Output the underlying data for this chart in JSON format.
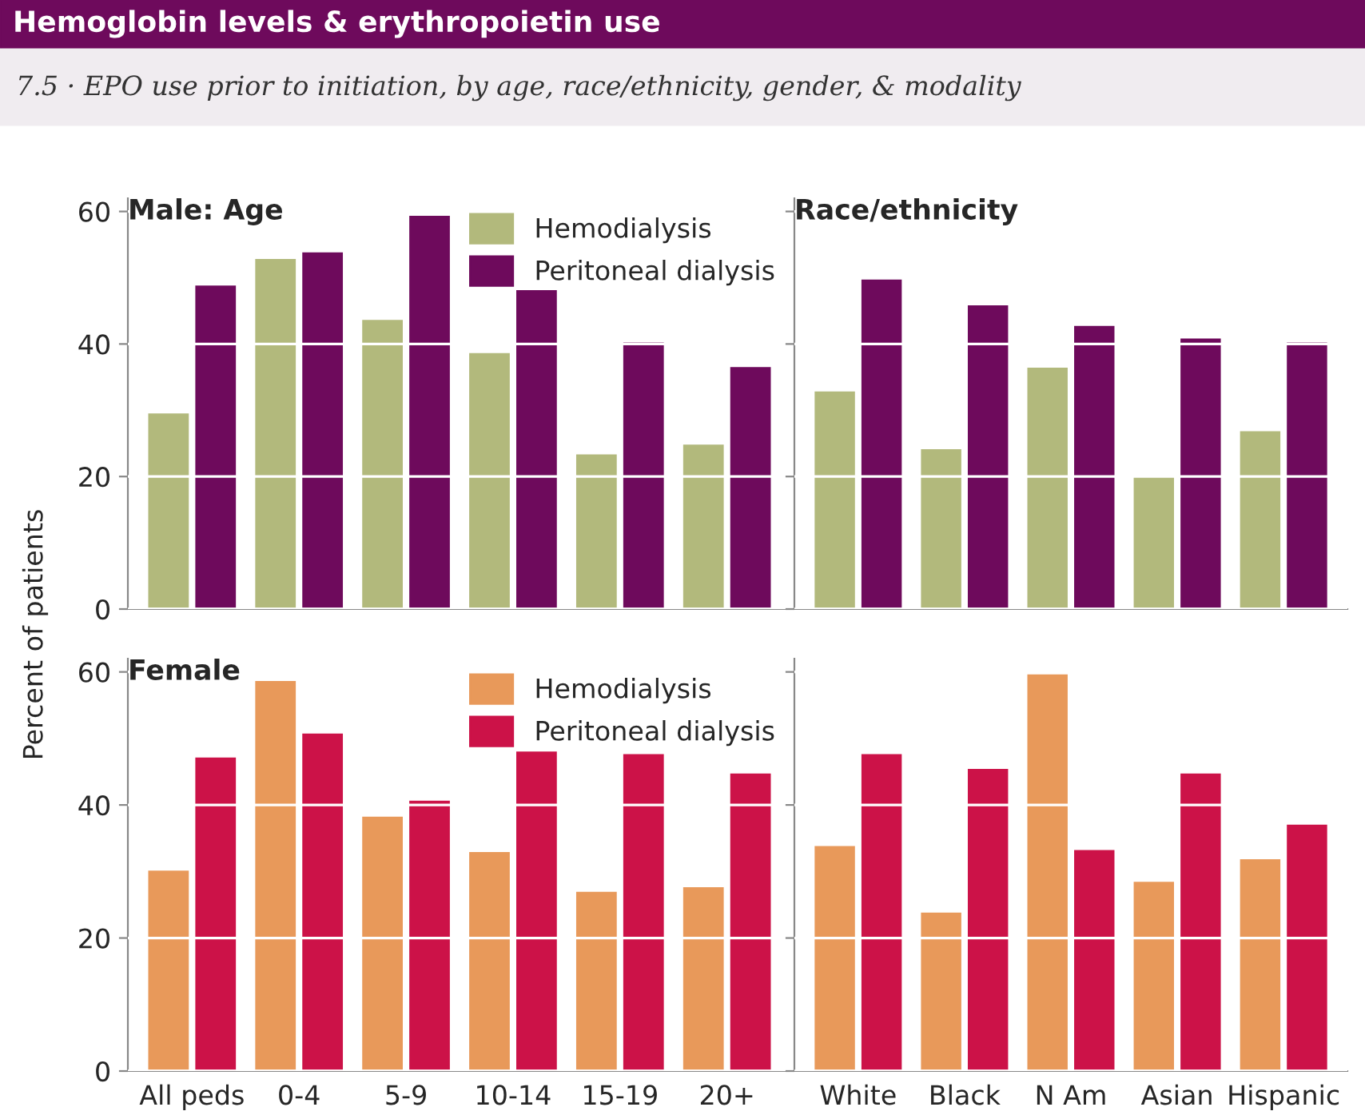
{
  "chart_data": [
    {
      "type": "other",
      "title": "Hemoglobin levels & erythropoietin use",
      "subtitle": "7.5 · EPO use prior to initiation, by age, race/ethnicity, gender, & modality"
    },
    {
      "type": "bar",
      "title": "Male: Age",
      "ylabel": "Percent of patients",
      "categories": [
        null,
        null,
        null,
        null,
        null,
        null
      ],
      "ylim": [
        0,
        62
      ],
      "yticks": [
        0,
        20,
        40,
        60
      ],
      "grid": "y",
      "legend": "top right",
      "tick_labels": "y",
      "series": [
        {
          "name": "Hemodialysis",
          "color": "#b2b97c",
          "values": [
            29.7,
            53,
            43.8,
            38.8,
            23.5,
            25
          ]
        },
        {
          "name": "Peritoneal dialysis",
          "color": "#6e0a5c",
          "values": [
            49,
            54,
            59.5,
            48.3,
            40.4,
            36.7
          ]
        }
      ]
    },
    {
      "type": "bar",
      "title": "Race/ethnicity",
      "categories": [
        null,
        null,
        null,
        null,
        null
      ],
      "ylim": [
        0,
        62
      ],
      "yticks": [
        0,
        20,
        40,
        60
      ],
      "grid": "y",
      "tick_labels": false,
      "series": [
        {
          "color": "#b2b97c",
          "values": [
            33,
            24.3,
            36.6,
            20.2,
            27
          ]
        },
        {
          "color": "#6e0a5c",
          "values": [
            49.9,
            46,
            42.9,
            41,
            40.4
          ]
        }
      ]
    },
    {
      "type": "bar",
      "title": "Female",
      "categories": [
        "All peds",
        "0-4",
        "5-9",
        "10-14",
        "15-19",
        "20+"
      ],
      "ylim": [
        0,
        62
      ],
      "yticks": [
        0,
        20,
        40,
        60
      ],
      "grid": "y",
      "legend": "top right",
      "series": [
        {
          "name": "Hemodialysis",
          "color": "#e8995a",
          "values": [
            30.3,
            58.8,
            38.4,
            33.1,
            27.1,
            27.8
          ]
        },
        {
          "name": "Peritoneal dialysis",
          "color": "#cc1248",
          "values": [
            47.3,
            50.9,
            40.8,
            48.2,
            47.8,
            44.9
          ]
        }
      ]
    },
    {
      "type": "bar",
      "categories": [
        "White",
        "Black",
        "N Am",
        "Asian",
        "Hispanic"
      ],
      "ylim": [
        0,
        62
      ],
      "yticks": [
        0,
        20,
        40,
        60
      ],
      "grid": "y",
      "tick_labels": "x",
      "series": [
        {
          "color": "#e8995a",
          "values": [
            34,
            24,
            59.8,
            28.6,
            32
          ]
        },
        {
          "color": "#cc1248",
          "values": [
            47.8,
            45.6,
            33.4,
            44.9,
            37.2
          ]
        }
      ]
    }
  ]
}
